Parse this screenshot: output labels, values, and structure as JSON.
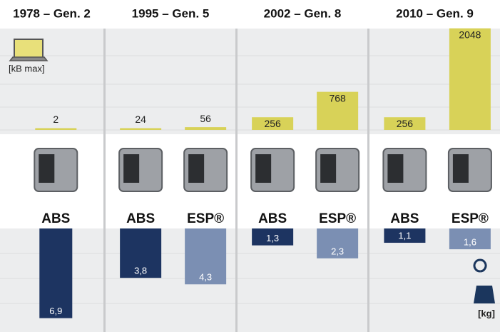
{
  "chart_data": {
    "type": "bar",
    "memory_unit": "[kB max]",
    "weight_unit": "[kg]",
    "groups": [
      {
        "title": "1978 – Gen. 2",
        "items": [
          {
            "name": "ABS",
            "memory": 2,
            "weight": 6.9,
            "weight_label": "6,9"
          }
        ]
      },
      {
        "title": "1995 – Gen. 5",
        "items": [
          {
            "name": "ABS",
            "memory": 24,
            "weight": 3.8,
            "weight_label": "3,8"
          },
          {
            "name": "ESP®",
            "memory": 56,
            "weight": 4.3,
            "weight_label": "4,3"
          }
        ]
      },
      {
        "title": "2002 – Gen. 8",
        "items": [
          {
            "name": "ABS",
            "memory": 256,
            "weight": 1.3,
            "weight_label": "1,3"
          },
          {
            "name": "ESP®",
            "memory": 768,
            "weight": 2.3,
            "weight_label": "2,3"
          }
        ]
      },
      {
        "title": "2010 – Gen. 9",
        "items": [
          {
            "name": "ABS",
            "memory": 256,
            "weight": 1.1,
            "weight_label": "1,1"
          },
          {
            "name": "ESP®",
            "memory": 2048,
            "weight": 1.6,
            "weight_label": "1,6"
          }
        ]
      }
    ]
  }
}
